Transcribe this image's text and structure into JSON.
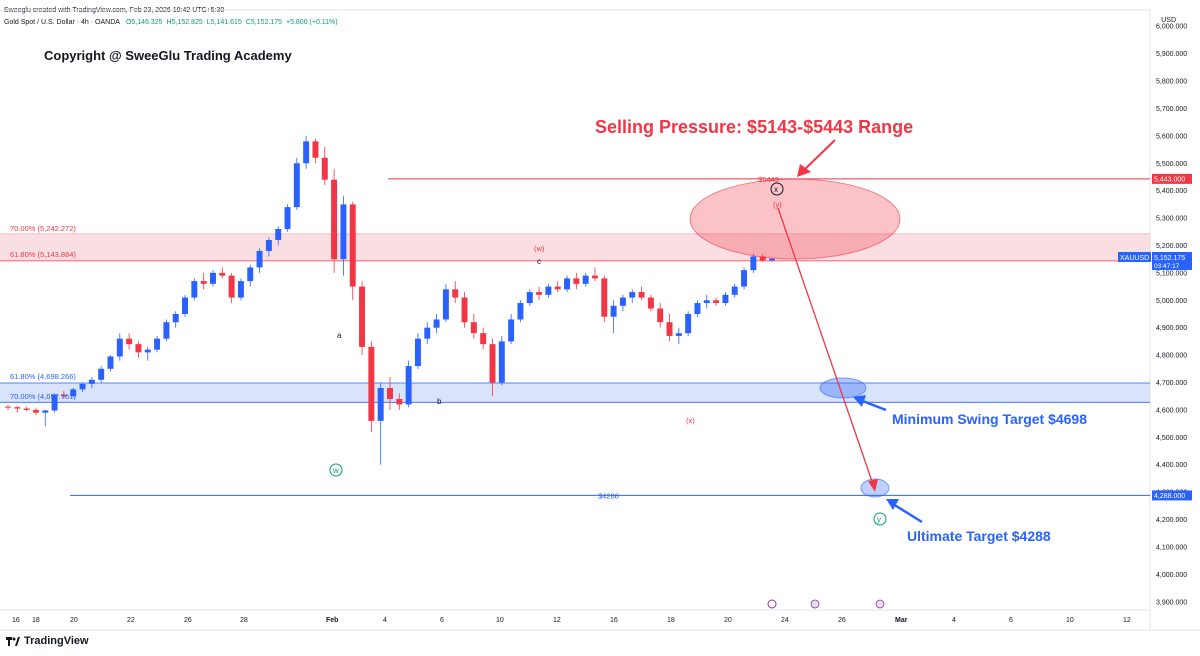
{
  "header": {
    "credit": "Sweeglu created with TradingView.com, Feb 23, 2026 19:42 UTC+5:30",
    "symbol": "Gold Spot / U.S. Dollar · 4h · OANDA",
    "open": "O5,146.325",
    "high": "H5,152.825",
    "low": "L5,141.615",
    "close": "C5,152.175",
    "change": "+5.800 (+0.11%)"
  },
  "currency": "USD",
  "copyright": "Copyright @ SweeGlu Trading Academy",
  "brand": "TradingView",
  "annotations": {
    "selling_pressure": "Selling Pressure: $5143-$5443 Range",
    "min_swing": "Minimum Swing Target $4698",
    "ultimate": "Ultimate Target $4288",
    "line_5443": "$5443",
    "line_4288": "$4288",
    "fib_upper_70": "70.00% (5,242.272)",
    "fib_upper_618": "61.80% (5,143.884)",
    "fib_lower_618": "61.80% (4,698.266)",
    "fib_lower_70": "70.00% (4,657.761)",
    "wave_w_paren": "(w)",
    "wave_x_paren": "(x)",
    "wave_y_paren": "(y)",
    "wave_a": "a",
    "wave_b": "b",
    "wave_c": "c",
    "circle_w": "w",
    "circle_x": "x",
    "circle_y": "y"
  },
  "price_badges": {
    "badge_5443": "5,443.000",
    "badge_xau_label": "XAUUSD",
    "badge_xau_price": "5,152.175",
    "badge_xau_time": "03:47:17",
    "badge_4288": "4,288.000"
  },
  "chart_data": {
    "type": "candlestick",
    "price_axis": [
      "6,000.000",
      "5,900.000",
      "5,800.000",
      "5,700.000",
      "5,600.000",
      "5,500.000",
      "5,400.000",
      "5,300.000",
      "5,200.000",
      "5,100.000",
      "5,000.000",
      "4,900.000",
      "4,800.000",
      "4,700.000",
      "4,600.000",
      "4,500.000",
      "4,400.000",
      "4,300.000",
      "4,200.000",
      "4,100.000",
      "4,000.000",
      "3,900.000"
    ],
    "date_axis": [
      "16",
      "18",
      "20",
      "22",
      "26",
      "28",
      "Feb",
      "4",
      "6",
      "10",
      "12",
      "16",
      "18",
      "20",
      "24",
      "26",
      "Mar",
      "4",
      "6",
      "10",
      "12"
    ],
    "ylim": [
      3870,
      6030
    ],
    "levels": {
      "resistance": 5443,
      "fib_upper_70": 5242.272,
      "fib_upper_618": 5143.884,
      "fib_lower_618": 4698.266,
      "fib_lower_70": 4657.761,
      "ultimate_target": 4288
    },
    "candles": [
      [
        4612,
        4620,
        4600,
        4610
      ],
      [
        4610,
        4615,
        4590,
        4605
      ],
      [
        4605,
        4612,
        4595,
        4600
      ],
      [
        4600,
        4608,
        4580,
        4590
      ],
      [
        4590,
        4600,
        4540,
        4598
      ],
      [
        4598,
        4660,
        4590,
        4655
      ],
      [
        4655,
        4670,
        4640,
        4650
      ],
      [
        4650,
        4680,
        4645,
        4675
      ],
      [
        4675,
        4700,
        4665,
        4695
      ],
      [
        4695,
        4720,
        4680,
        4710
      ],
      [
        4710,
        4760,
        4700,
        4750
      ],
      [
        4750,
        4800,
        4740,
        4795
      ],
      [
        4795,
        4880,
        4780,
        4860
      ],
      [
        4860,
        4880,
        4820,
        4840
      ],
      [
        4840,
        4850,
        4790,
        4810
      ],
      [
        4810,
        4830,
        4780,
        4820
      ],
      [
        4820,
        4870,
        4810,
        4860
      ],
      [
        4860,
        4930,
        4850,
        4920
      ],
      [
        4920,
        4960,
        4900,
        4950
      ],
      [
        4950,
        5020,
        4940,
        5010
      ],
      [
        5010,
        5080,
        5000,
        5070
      ],
      [
        5070,
        5100,
        5040,
        5060
      ],
      [
        5060,
        5110,
        5050,
        5100
      ],
      [
        5100,
        5120,
        5080,
        5090
      ],
      [
        5090,
        5100,
        4990,
        5010
      ],
      [
        5010,
        5080,
        5000,
        5070
      ],
      [
        5070,
        5130,
        5050,
        5120
      ],
      [
        5120,
        5190,
        5100,
        5180
      ],
      [
        5180,
        5230,
        5160,
        5220
      ],
      [
        5220,
        5270,
        5200,
        5260
      ],
      [
        5260,
        5350,
        5250,
        5340
      ],
      [
        5340,
        5520,
        5330,
        5500
      ],
      [
        5500,
        5600,
        5480,
        5580
      ],
      [
        5580,
        5590,
        5500,
        5520
      ],
      [
        5520,
        5560,
        5420,
        5440
      ],
      [
        5440,
        5480,
        5100,
        5150
      ],
      [
        5150,
        5380,
        5090,
        5350
      ],
      [
        5350,
        5360,
        5000,
        5050
      ],
      [
        5050,
        5070,
        4800,
        4830
      ],
      [
        4830,
        4850,
        4520,
        4560
      ],
      [
        4560,
        4700,
        4400,
        4680
      ],
      [
        4680,
        4720,
        4600,
        4640
      ],
      [
        4640,
        4660,
        4600,
        4620
      ],
      [
        4620,
        4780,
        4610,
        4760
      ],
      [
        4760,
        4880,
        4750,
        4860
      ],
      [
        4860,
        4920,
        4840,
        4900
      ],
      [
        4900,
        4950,
        4880,
        4930
      ],
      [
        4930,
        5060,
        4920,
        5040
      ],
      [
        5040,
        5070,
        4990,
        5010
      ],
      [
        5010,
        5030,
        4900,
        4920
      ],
      [
        4920,
        4950,
        4860,
        4880
      ],
      [
        4880,
        4900,
        4820,
        4840
      ],
      [
        4840,
        4860,
        4650,
        4700
      ],
      [
        4700,
        4870,
        4690,
        4850
      ],
      [
        4850,
        4950,
        4840,
        4930
      ],
      [
        4930,
        5000,
        4920,
        4990
      ],
      [
        4990,
        5040,
        4980,
        5030
      ],
      [
        5030,
        5050,
        5000,
        5020
      ],
      [
        5020,
        5060,
        5010,
        5050
      ],
      [
        5050,
        5070,
        5030,
        5040
      ],
      [
        5040,
        5090,
        5030,
        5080
      ],
      [
        5080,
        5100,
        5040,
        5060
      ],
      [
        5060,
        5100,
        5050,
        5090
      ],
      [
        5090,
        5120,
        5070,
        5080
      ],
      [
        5080,
        5090,
        4920,
        4940
      ],
      [
        4940,
        5000,
        4880,
        4980
      ],
      [
        4980,
        5020,
        4960,
        5010
      ],
      [
        5010,
        5040,
        4990,
        5030
      ],
      [
        5030,
        5050,
        5000,
        5010
      ],
      [
        5010,
        5020,
        4960,
        4970
      ],
      [
        4970,
        4990,
        4900,
        4920
      ],
      [
        4920,
        4950,
        4850,
        4870
      ],
      [
        4870,
        4900,
        4840,
        4880
      ],
      [
        4880,
        4960,
        4870,
        4950
      ],
      [
        4950,
        5000,
        4940,
        4990
      ],
      [
        4990,
        5020,
        4970,
        5000
      ],
      [
        5000,
        5010,
        4980,
        4990
      ],
      [
        4990,
        5030,
        4980,
        5020
      ],
      [
        5020,
        5060,
        5010,
        5050
      ],
      [
        5050,
        5120,
        5040,
        5110
      ],
      [
        5110,
        5170,
        5100,
        5160
      ],
      [
        5160,
        5170,
        5140,
        5146
      ],
      [
        5146,
        5153,
        5141,
        5152
      ]
    ]
  }
}
